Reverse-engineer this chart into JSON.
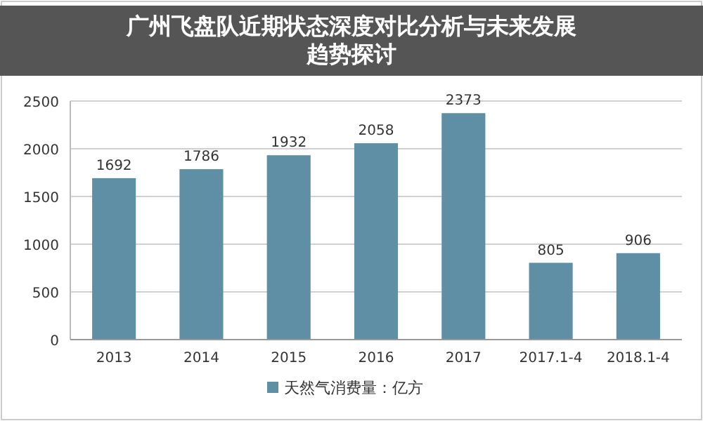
{
  "chart_data": {
    "type": "bar",
    "title": "广州飞盘队近期状态深度对比分析与未来发展趋势探讨",
    "categories": [
      "2013",
      "2014",
      "2015",
      "2016",
      "2017",
      "2017.1-4",
      "2018.1-4"
    ],
    "series": [
      {
        "name": "天然气消费量：亿方",
        "color": "#5e8fa4",
        "values": [
          1692,
          1786,
          1932,
          2058,
          2373,
          805,
          906
        ]
      }
    ],
    "ylim": [
      0,
      2500
    ],
    "yticks": [
      0,
      500,
      1000,
      1500,
      2000,
      2500
    ],
    "grid": "y",
    "data_labels": true,
    "legend": "bottom"
  }
}
